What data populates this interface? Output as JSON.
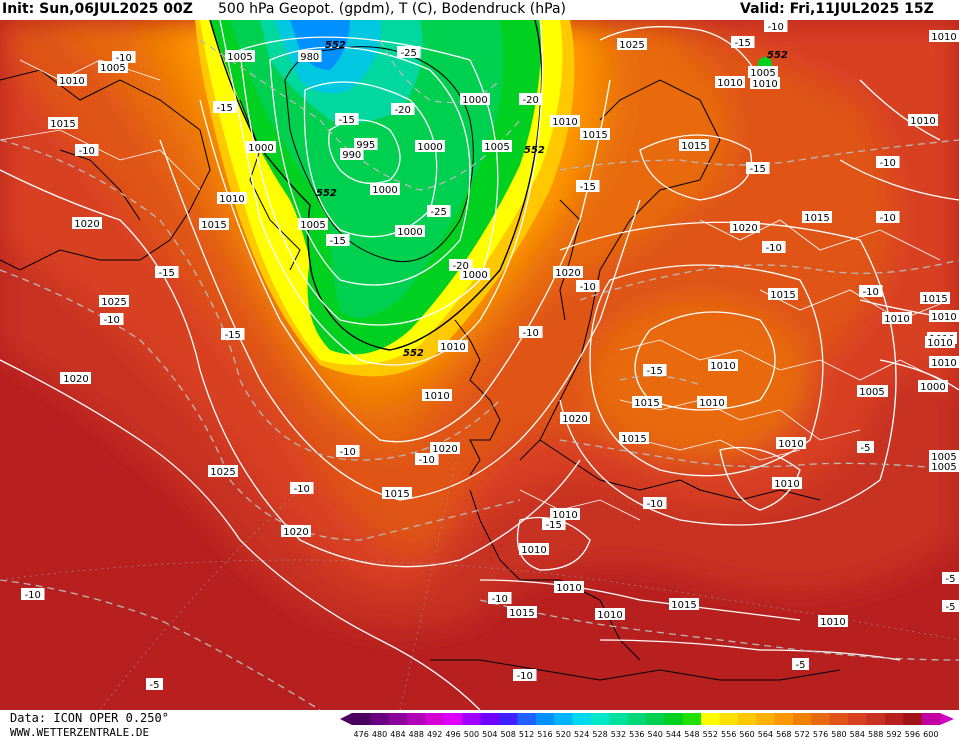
{
  "header": {
    "init": "Init: Sun,06JUL2025 00Z",
    "title": "500 hPa Geopot. (gpdm), T (C), Bodendruck (hPa)",
    "valid": "Valid: Fri,11JUL2025 15Z"
  },
  "footer": {
    "data_source": "Data: ICON OPER 0.250°",
    "website": "WWW.WETTERZENTRALE.DE"
  },
  "colorbar": {
    "ticks": [
      "476",
      "480",
      "484",
      "488",
      "492",
      "496",
      "500",
      "504",
      "508",
      "512",
      "516",
      "520",
      "524",
      "528",
      "532",
      "536",
      "540",
      "544",
      "548",
      "552",
      "556",
      "560",
      "564",
      "568",
      "572",
      "576",
      "580",
      "584",
      "588",
      "592",
      "596",
      "600"
    ],
    "colors": [
      "#4b0060",
      "#6a007f",
      "#8a0099",
      "#b000b8",
      "#d400d4",
      "#e000ff",
      "#a000ff",
      "#7000ff",
      "#4020ff",
      "#2060ff",
      "#0090ff",
      "#00b4ff",
      "#00d8f0",
      "#00e8c8",
      "#00e0a0",
      "#00d878",
      "#00d050",
      "#00d020",
      "#20e000",
      "#ffff00",
      "#ffe000",
      "#ffc800",
      "#ffb000",
      "#ff9800",
      "#f08000",
      "#e86a10",
      "#e05418",
      "#d84020",
      "#c83020",
      "#b82020",
      "#a01418",
      "#c000a0"
    ]
  },
  "map_labels": {
    "pressure": [
      {
        "t": "1005"
      },
      {
        "t": "980"
      },
      {
        "t": "1010"
      },
      {
        "t": "1005"
      },
      {
        "t": "1000"
      },
      {
        "t": "995"
      },
      {
        "t": "990"
      },
      {
        "t": "1000"
      },
      {
        "t": "1000"
      },
      {
        "t": "1000"
      },
      {
        "t": "1000"
      },
      {
        "t": "1005"
      },
      {
        "t": "1005"
      },
      {
        "t": "1000"
      },
      {
        "t": "1010"
      },
      {
        "t": "1015"
      },
      {
        "t": "1015"
      },
      {
        "t": "1020"
      },
      {
        "t": "1025"
      },
      {
        "t": "1020"
      },
      {
        "t": "1010"
      },
      {
        "t": "1005"
      },
      {
        "t": "1010"
      },
      {
        "t": "1015"
      },
      {
        "t": "1010"
      },
      {
        "t": "1015"
      },
      {
        "t": "1020"
      },
      {
        "t": "1015"
      },
      {
        "t": "1025"
      },
      {
        "t": "1020"
      },
      {
        "t": "1020"
      },
      {
        "t": "1015"
      },
      {
        "t": "1010"
      },
      {
        "t": "1010"
      },
      {
        "t": "1015"
      },
      {
        "t": "1010"
      },
      {
        "t": "1010"
      },
      {
        "t": "1010"
      },
      {
        "t": "1005"
      },
      {
        "t": "1000"
      },
      {
        "t": "1015"
      },
      {
        "t": "1010"
      },
      {
        "t": "1010"
      },
      {
        "t": "1005"
      },
      {
        "t": "1010"
      },
      {
        "t": "1015"
      },
      {
        "t": "1020"
      },
      {
        "t": "1015"
      },
      {
        "t": "1010"
      },
      {
        "t": "1010"
      },
      {
        "t": "1010"
      },
      {
        "t": "1010"
      },
      {
        "t": "1010"
      },
      {
        "t": "1010"
      },
      {
        "t": "1015"
      },
      {
        "t": "1010"
      },
      {
        "t": "1020"
      },
      {
        "t": "1005"
      },
      {
        "t": "1010"
      },
      {
        "t": "1020"
      },
      {
        "t": "1025"
      },
      {
        "t": "1010"
      },
      {
        "t": "1010"
      },
      {
        "t": "1015"
      },
      {
        "t": "1005"
      }
    ],
    "temperature": [
      {
        "t": "-10"
      },
      {
        "t": "-15"
      },
      {
        "t": "-10"
      },
      {
        "t": "-15"
      },
      {
        "t": "-10"
      },
      {
        "t": "-15"
      },
      {
        "t": "-15"
      },
      {
        "t": "-25"
      },
      {
        "t": "-20"
      },
      {
        "t": "-20"
      },
      {
        "t": "-25"
      },
      {
        "t": "-20"
      },
      {
        "t": "-15"
      },
      {
        "t": "-15"
      },
      {
        "t": "-15"
      },
      {
        "t": "-15"
      },
      {
        "t": "-10"
      },
      {
        "t": "-10"
      },
      {
        "t": "-10"
      },
      {
        "t": "-10"
      },
      {
        "t": "-10"
      },
      {
        "t": "-10"
      },
      {
        "t": "-10"
      },
      {
        "t": "-15"
      },
      {
        "t": "-10"
      },
      {
        "t": "-10"
      },
      {
        "t": "-10"
      },
      {
        "t": "-10"
      },
      {
        "t": "-10"
      },
      {
        "t": "-5"
      },
      {
        "t": "-5"
      },
      {
        "t": "-5"
      },
      {
        "t": "-5"
      },
      {
        "t": "-5"
      },
      {
        "t": "-10"
      },
      {
        "t": "-10"
      },
      {
        "t": "-15"
      }
    ],
    "geopotential": [
      {
        "t": "552"
      },
      {
        "t": "552"
      },
      {
        "t": "552"
      },
      {
        "t": "552"
      },
      {
        "t": "552"
      }
    ]
  }
}
